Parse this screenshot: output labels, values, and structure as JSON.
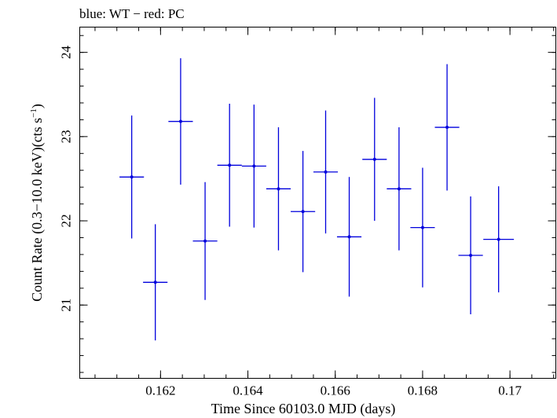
{
  "chart_data": {
    "type": "scatter",
    "title": "blue: WT − red: PC",
    "xlabel": "Time Since 60103.0 MJD (days)",
    "ylabel_main": "Count Rate (0.3−10.0 keV)(cts s",
    "ylabel_sup": "−1",
    "ylabel_close": ")",
    "xlim": [
      0.16015,
      0.17105
    ],
    "ylim": [
      20.13,
      24.3
    ],
    "x_major_ticks": [
      0.162,
      0.164,
      0.166,
      0.168,
      0.17
    ],
    "x_tick_labels": [
      "0.162",
      "0.164",
      "0.166",
      "0.168",
      "0.17"
    ],
    "x_minor_step": 0.0005,
    "y_major_ticks": [
      21,
      22,
      23,
      24
    ],
    "y_tick_labels": [
      "21",
      "22",
      "23",
      "24"
    ],
    "y_minor_step": 0.2,
    "grid": false,
    "series": [
      {
        "name": "WT",
        "color": "#0000dd",
        "points": [
          {
            "x": 0.16134,
            "y": 22.52,
            "xerr": 0.00028,
            "yerr": 0.73
          },
          {
            "x": 0.16188,
            "y": 21.27,
            "xerr": 0.00028,
            "yerr": 0.69
          },
          {
            "x": 0.16246,
            "y": 23.18,
            "xerr": 0.00028,
            "yerr": 0.75
          },
          {
            "x": 0.16302,
            "y": 21.76,
            "xerr": 0.00028,
            "yerr": 0.7
          },
          {
            "x": 0.16358,
            "y": 22.66,
            "xerr": 0.00028,
            "yerr": 0.73
          },
          {
            "x": 0.16414,
            "y": 22.65,
            "xerr": 0.00028,
            "yerr": 0.73
          },
          {
            "x": 0.1647,
            "y": 22.38,
            "xerr": 0.00028,
            "yerr": 0.73
          },
          {
            "x": 0.16526,
            "y": 22.11,
            "xerr": 0.00028,
            "yerr": 0.72
          },
          {
            "x": 0.16578,
            "y": 22.58,
            "xerr": 0.00028,
            "yerr": 0.73
          },
          {
            "x": 0.16632,
            "y": 21.81,
            "xerr": 0.00028,
            "yerr": 0.71
          },
          {
            "x": 0.1669,
            "y": 22.73,
            "xerr": 0.00028,
            "yerr": 0.73
          },
          {
            "x": 0.16746,
            "y": 22.38,
            "xerr": 0.00028,
            "yerr": 0.73
          },
          {
            "x": 0.168,
            "y": 21.92,
            "xerr": 0.00028,
            "yerr": 0.71
          },
          {
            "x": 0.16856,
            "y": 23.11,
            "xerr": 0.00028,
            "yerr": 0.75
          },
          {
            "x": 0.1691,
            "y": 21.59,
            "xerr": 0.00028,
            "yerr": 0.7
          },
          {
            "x": 0.16974,
            "y": 21.78,
            "xerr": 0.00035,
            "yerr": 0.63
          }
        ]
      }
    ]
  }
}
